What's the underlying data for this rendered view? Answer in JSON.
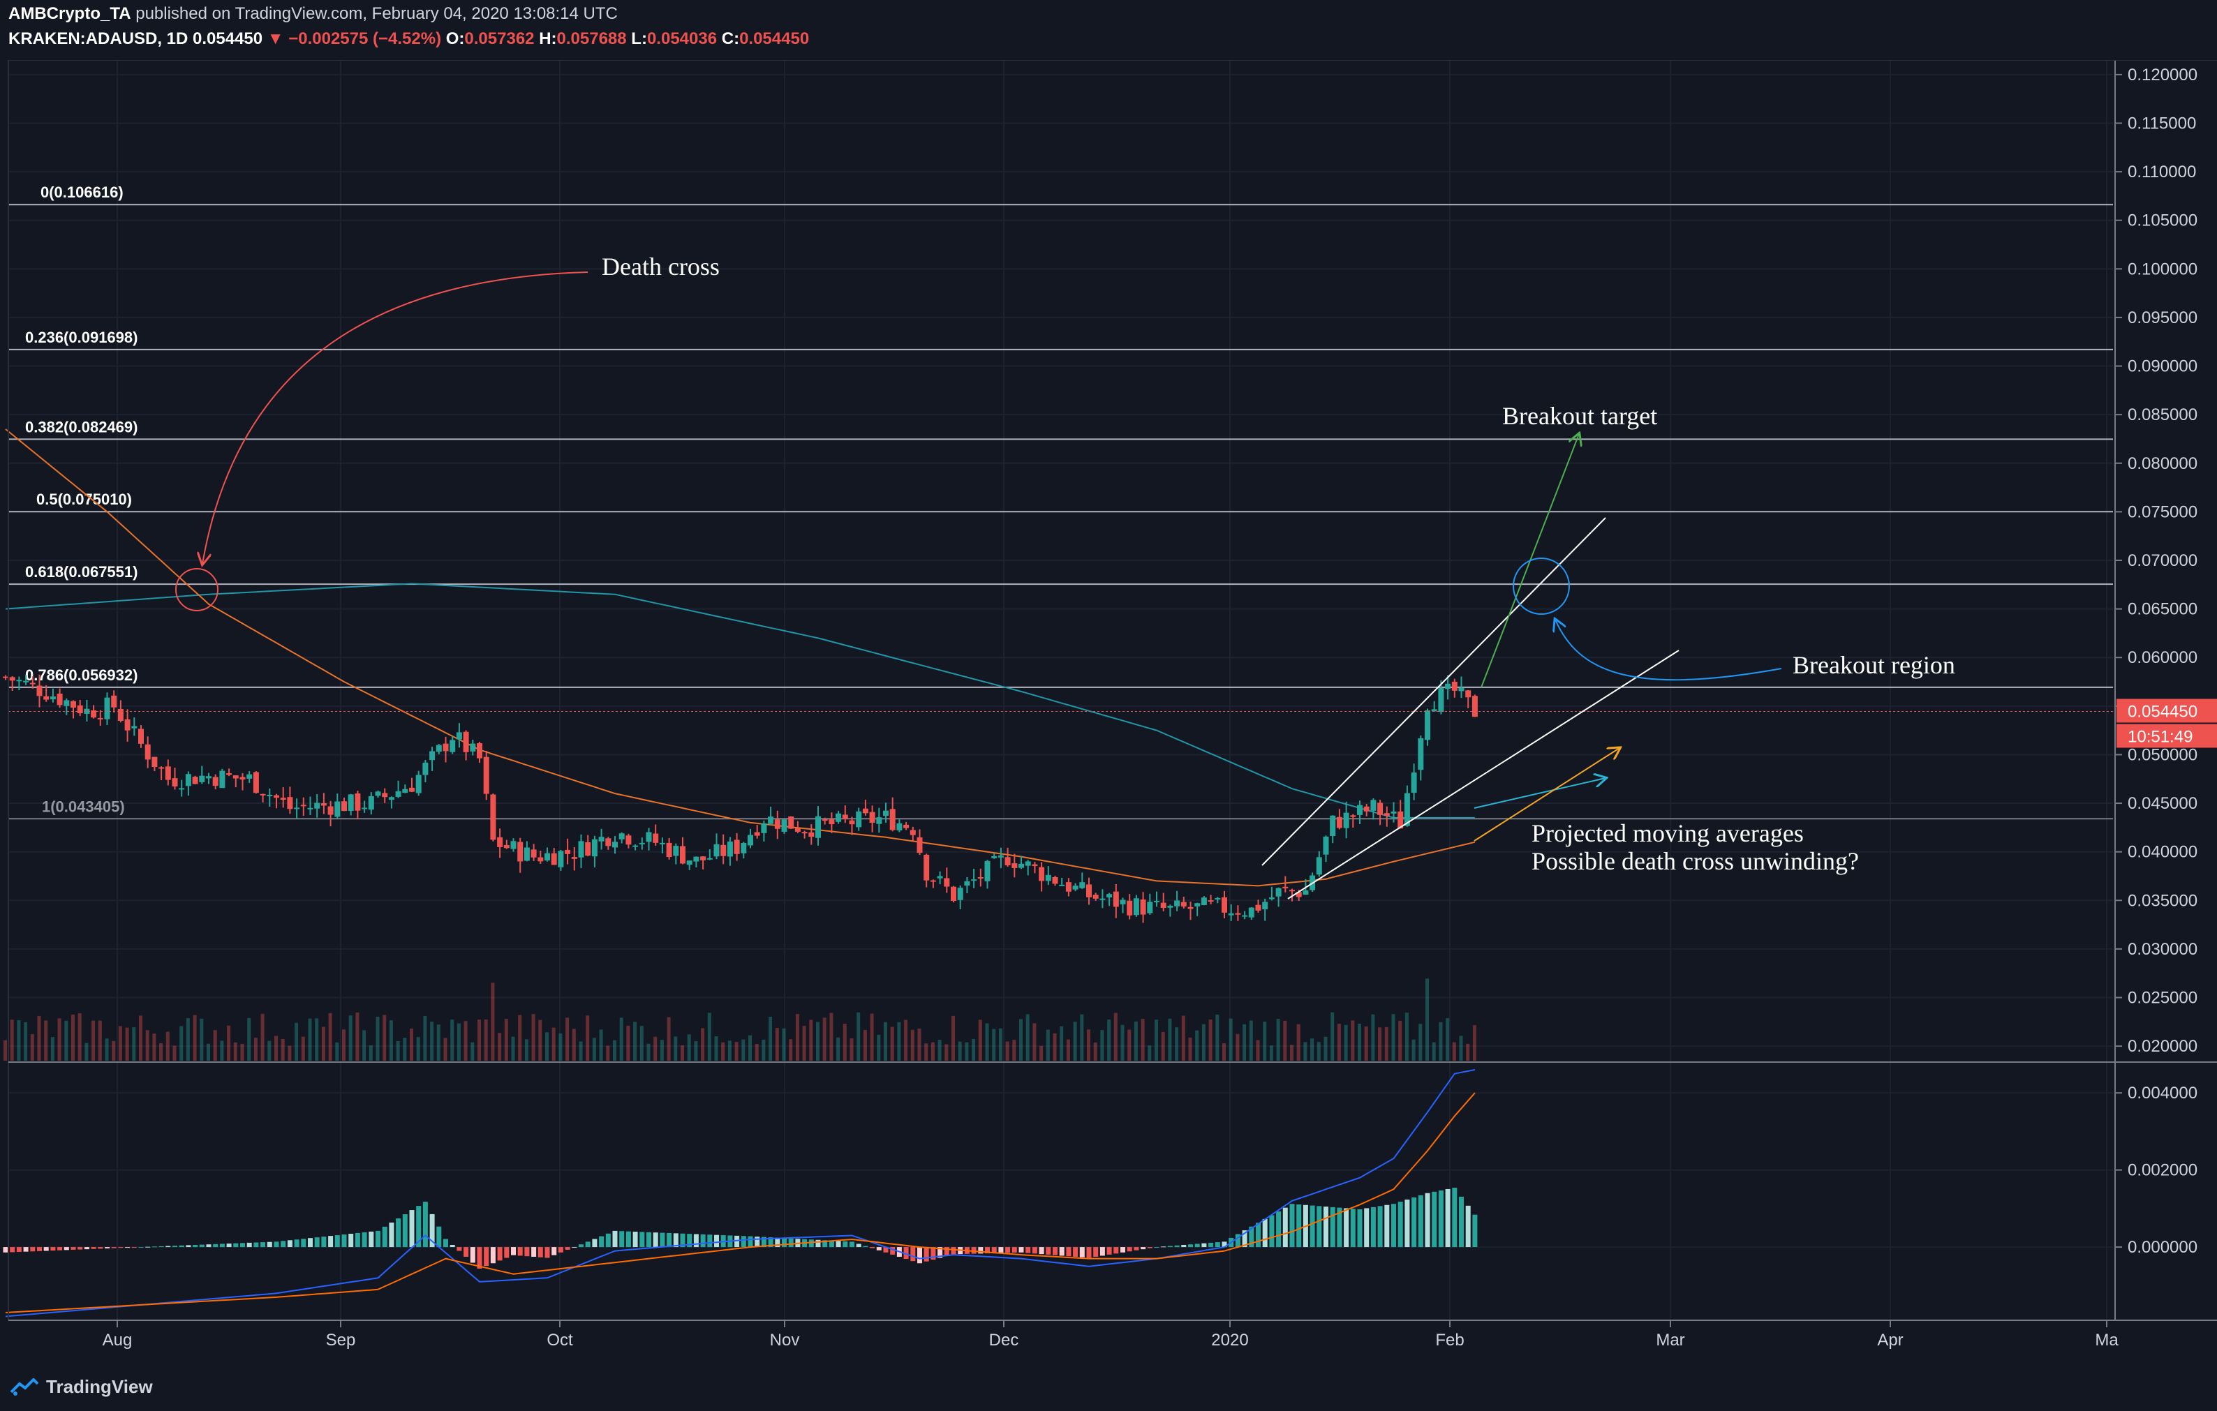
{
  "header": {
    "author": "AMBCrypto_TA",
    "published_text": "published on TradingView.com, February 04, 2020 13:08:14 UTC",
    "symbol": "KRAKEN:ADAUSD, 1D",
    "last": "0.054450",
    "change": "▼ −0.002575 (−4.52%)",
    "o_label": "O:",
    "o_value": "0.057362",
    "h_label": "H:",
    "h_value": "0.057688",
    "l_label": "L:",
    "l_value": "0.054036",
    "c_label": "C:",
    "c_value": "0.054450"
  },
  "footer": {
    "brand": "TradingView"
  },
  "colors": {
    "background": "#131722",
    "up": "#26a69a",
    "down": "#ef5350",
    "ma_short": "#e8732a",
    "ma_long": "#2196a8",
    "fib": "#b2b5be",
    "macd": "#2962ff",
    "signal": "#ff6d00"
  },
  "chart_data": {
    "type": "candlestick",
    "x_ticks": [
      "Aug",
      "Sep",
      "Oct",
      "Nov",
      "Dec",
      "2020",
      "Feb",
      "Mar",
      "Apr",
      "Ma"
    ],
    "price_axis": {
      "ticks": [
        "0.120000",
        "0.115000",
        "0.110000",
        "0.105000",
        "0.100000",
        "0.095000",
        "0.090000",
        "0.085000",
        "0.080000",
        "0.075000",
        "0.070000",
        "0.065000",
        "0.060000",
        "0.055000",
        "0.050000",
        "0.045000",
        "0.040000",
        "0.035000",
        "0.030000",
        "0.025000",
        "0.020000"
      ],
      "ylim": [
        0.0185,
        0.1215
      ]
    },
    "macd_axis": {
      "ticks": [
        "0.004000",
        "0.002000",
        "0.000000"
      ],
      "ylim": [
        -0.0019,
        0.0048
      ]
    },
    "last_price_label": "0.054450",
    "countdown_label": "10:51:49",
    "fib_levels": [
      {
        "label": "0(0.106616)",
        "value": 0.106616
      },
      {
        "label": "0.236(0.091698)",
        "value": 0.091698
      },
      {
        "label": "0.382(0.082469)",
        "value": 0.082469
      },
      {
        "label": "0.5(0.075010)",
        "value": 0.07501
      },
      {
        "label": "0.618(0.067551)",
        "value": 0.067551
      },
      {
        "label": "0.786(0.056932)",
        "value": 0.056932
      },
      {
        "label": "1(0.043405)",
        "value": 0.043405
      }
    ],
    "close_path": [
      [
        0,
        0.058
      ],
      [
        6,
        0.0565
      ],
      [
        12,
        0.0545
      ],
      [
        16,
        0.055
      ],
      [
        20,
        0.051
      ],
      [
        24,
        0.0475
      ],
      [
        30,
        0.0478
      ],
      [
        36,
        0.0475
      ],
      [
        42,
        0.0445
      ],
      [
        48,
        0.0448
      ],
      [
        54,
        0.045
      ],
      [
        60,
        0.047
      ],
      [
        66,
        0.052
      ],
      [
        70,
        0.0495
      ],
      [
        72,
        0.041
      ],
      [
        78,
        0.0395
      ],
      [
        84,
        0.04
      ],
      [
        90,
        0.042
      ],
      [
        96,
        0.041
      ],
      [
        102,
        0.039
      ],
      [
        108,
        0.0405
      ],
      [
        112,
        0.0435
      ],
      [
        118,
        0.0425
      ],
      [
        124,
        0.043
      ],
      [
        130,
        0.0435
      ],
      [
        134,
        0.0425
      ],
      [
        136,
        0.038
      ],
      [
        140,
        0.0355
      ],
      [
        144,
        0.0375
      ],
      [
        148,
        0.0395
      ],
      [
        154,
        0.0375
      ],
      [
        160,
        0.0355
      ],
      [
        166,
        0.0345
      ],
      [
        172,
        0.034
      ],
      [
        178,
        0.0343
      ],
      [
        184,
        0.034
      ],
      [
        188,
        0.0358
      ],
      [
        192,
        0.036
      ],
      [
        196,
        0.043
      ],
      [
        202,
        0.0445
      ],
      [
        206,
        0.043
      ],
      [
        210,
        0.0555
      ],
      [
        214,
        0.0565
      ],
      [
        217,
        0.05445
      ]
    ],
    "ma_long": [
      [
        0,
        0.065
      ],
      [
        30,
        0.0665
      ],
      [
        60,
        0.0676
      ],
      [
        90,
        0.0665
      ],
      [
        120,
        0.062
      ],
      [
        150,
        0.0565
      ],
      [
        170,
        0.0525
      ],
      [
        190,
        0.0465
      ],
      [
        205,
        0.0435
      ],
      [
        217,
        0.0435
      ]
    ],
    "ma_short": [
      [
        0,
        0.0835
      ],
      [
        15,
        0.075
      ],
      [
        30,
        0.0655
      ],
      [
        50,
        0.0575
      ],
      [
        70,
        0.0505
      ],
      [
        90,
        0.046
      ],
      [
        110,
        0.043
      ],
      [
        130,
        0.0415
      ],
      [
        150,
        0.0395
      ],
      [
        170,
        0.037
      ],
      [
        185,
        0.0365
      ],
      [
        195,
        0.0372
      ],
      [
        205,
        0.039
      ],
      [
        217,
        0.041
      ]
    ],
    "macd_line": [
      [
        0,
        -0.0018
      ],
      [
        20,
        -0.0015
      ],
      [
        40,
        -0.0012
      ],
      [
        55,
        -0.0008
      ],
      [
        62,
        0.0003
      ],
      [
        70,
        -0.0009
      ],
      [
        80,
        -0.0008
      ],
      [
        90,
        -0.0001
      ],
      [
        110,
        0.0002
      ],
      [
        125,
        0.0003
      ],
      [
        135,
        -0.0003
      ],
      [
        140,
        -0.0002
      ],
      [
        150,
        -0.0003
      ],
      [
        160,
        -0.0005
      ],
      [
        170,
        -0.0003
      ],
      [
        180,
        0
      ],
      [
        190,
        0.0012
      ],
      [
        200,
        0.0018
      ],
      [
        205,
        0.0023
      ],
      [
        210,
        0.0035
      ],
      [
        214,
        0.0045
      ],
      [
        217,
        0.0046
      ]
    ],
    "signal_line": [
      [
        0,
        -0.0017
      ],
      [
        20,
        -0.0015
      ],
      [
        40,
        -0.0013
      ],
      [
        55,
        -0.0011
      ],
      [
        65,
        -0.0003
      ],
      [
        75,
        -0.0007
      ],
      [
        90,
        -0.0004
      ],
      [
        110,
        0
      ],
      [
        125,
        0.0002
      ],
      [
        135,
        0
      ],
      [
        150,
        -0.0002
      ],
      [
        160,
        -0.0003
      ],
      [
        170,
        -0.0003
      ],
      [
        180,
        -0.0001
      ],
      [
        190,
        0.0004
      ],
      [
        200,
        0.0011
      ],
      [
        205,
        0.0015
      ],
      [
        210,
        0.0025
      ],
      [
        214,
        0.0034
      ],
      [
        217,
        0.004
      ]
    ],
    "annotations": {
      "death_cross": "Death cross",
      "breakout_target": "Breakout target",
      "breakout_region": "Breakout region",
      "projected_1": "Projected moving averages",
      "projected_2": "Possible death cross unwinding?"
    }
  }
}
